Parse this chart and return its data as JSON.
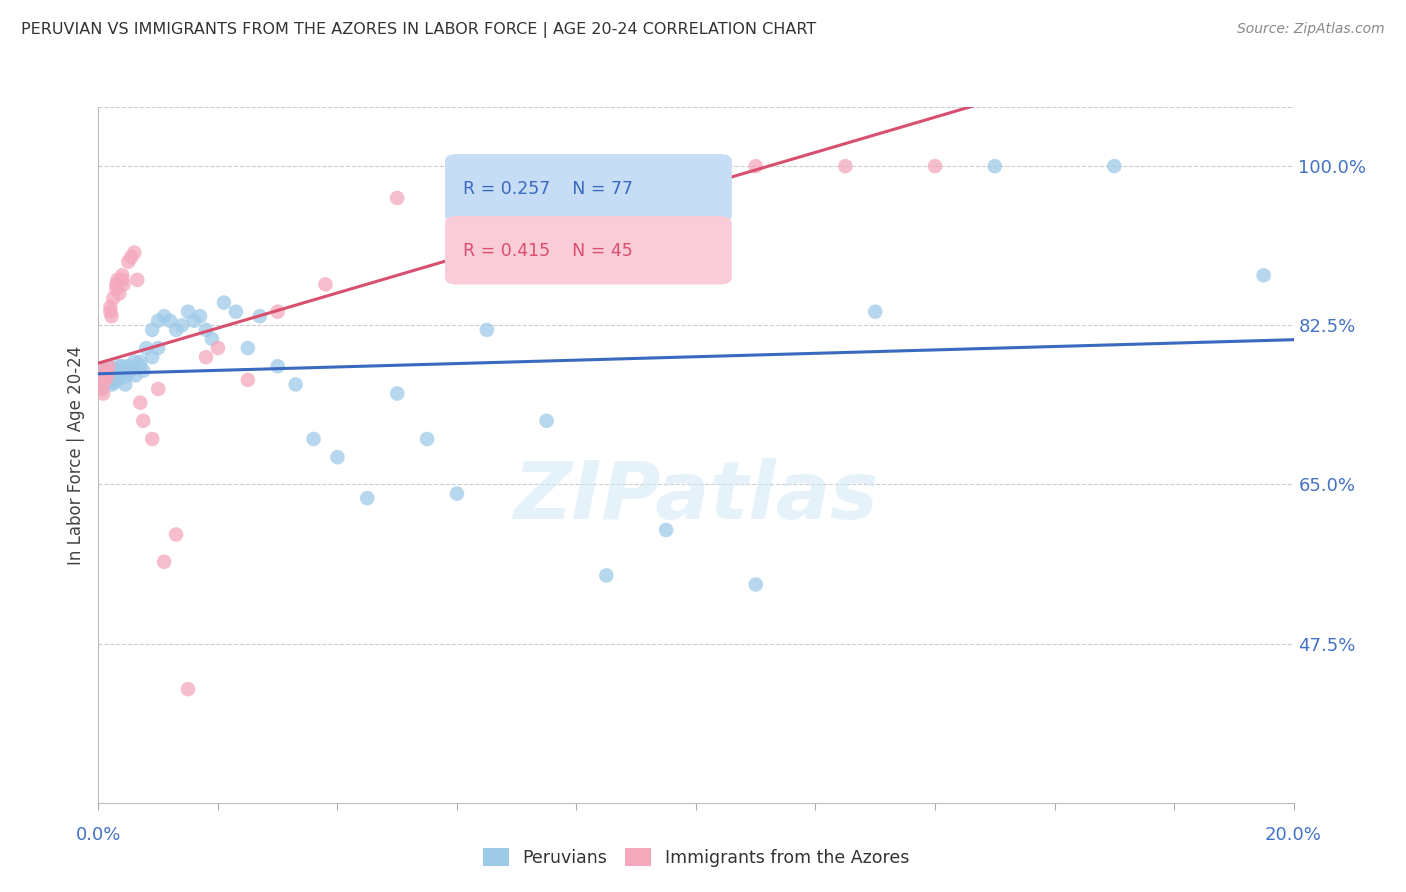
{
  "title": "PERUVIAN VS IMMIGRANTS FROM THE AZORES IN LABOR FORCE | AGE 20-24 CORRELATION CHART",
  "source": "Source: ZipAtlas.com",
  "ylabel": "In Labor Force | Age 20-24",
  "right_ytick_vals": [
    1.0,
    0.825,
    0.65,
    0.475
  ],
  "right_ytick_labels": [
    "100.0%",
    "82.5%",
    "65.0%",
    "47.5%"
  ],
  "legend_blue_label": "Peruvians",
  "legend_pink_label": "Immigrants from the Azores",
  "blue_r": "R = 0.257",
  "blue_n": "N = 77",
  "pink_r": "R = 0.415",
  "pink_n": "N = 45",
  "blue_scatter_color": "#9ecae8",
  "pink_scatter_color": "#f4a8bc",
  "blue_line_color": "#3a6abf",
  "pink_line_color": "#d94f6e",
  "legend_box_blue_face": "#c6ddf5",
  "legend_box_pink_face": "#f9ccd8",
  "background_color": "#ffffff",
  "grid_color": "#cccccc",
  "title_color": "#333333",
  "axis_label_color": "#4472c4",
  "watermark_color": "#d0e8f5",
  "xlim": [
    0.0,
    0.2
  ],
  "ylim": [
    0.3,
    1.065
  ],
  "blue_scatter_x": [
    0.0004,
    0.0005,
    0.0006,
    0.0007,
    0.0008,
    0.0009,
    0.001,
    0.001,
    0.001,
    0.0012,
    0.0013,
    0.0014,
    0.0015,
    0.0016,
    0.0017,
    0.0018,
    0.002,
    0.002,
    0.0021,
    0.0022,
    0.0023,
    0.0024,
    0.0025,
    0.0026,
    0.003,
    0.003,
    0.0032,
    0.0034,
    0.0035,
    0.004,
    0.004,
    0.0042,
    0.0045,
    0.005,
    0.005,
    0.0052,
    0.006,
    0.006,
    0.0062,
    0.007,
    0.007,
    0.0075,
    0.008,
    0.009,
    0.009,
    0.01,
    0.01,
    0.011,
    0.012,
    0.013,
    0.014,
    0.015,
    0.016,
    0.017,
    0.018,
    0.019,
    0.021,
    0.023,
    0.025,
    0.027,
    0.03,
    0.033,
    0.036,
    0.04,
    0.045,
    0.05,
    0.055,
    0.06,
    0.065,
    0.075,
    0.085,
    0.095,
    0.11,
    0.13,
    0.15,
    0.17,
    0.195
  ],
  "blue_scatter_y": [
    0.76,
    0.755,
    0.77,
    0.765,
    0.76,
    0.758,
    0.775,
    0.77,
    0.762,
    0.77,
    0.775,
    0.768,
    0.77,
    0.772,
    0.765,
    0.77,
    0.775,
    0.768,
    0.772,
    0.778,
    0.76,
    0.765,
    0.77,
    0.762,
    0.775,
    0.77,
    0.765,
    0.78,
    0.772,
    0.78,
    0.775,
    0.768,
    0.76,
    0.78,
    0.772,
    0.775,
    0.785,
    0.778,
    0.77,
    0.785,
    0.78,
    0.775,
    0.8,
    0.82,
    0.79,
    0.83,
    0.8,
    0.835,
    0.83,
    0.82,
    0.825,
    0.84,
    0.83,
    0.835,
    0.82,
    0.81,
    0.85,
    0.84,
    0.8,
    0.835,
    0.78,
    0.76,
    0.7,
    0.68,
    0.635,
    0.75,
    0.7,
    0.64,
    0.82,
    0.72,
    0.55,
    0.6,
    0.54,
    0.84,
    1.0,
    1.0,
    0.88
  ],
  "pink_scatter_x": [
    0.0004,
    0.0005,
    0.0006,
    0.0008,
    0.001,
    0.001,
    0.0012,
    0.0014,
    0.0015,
    0.0017,
    0.002,
    0.002,
    0.0022,
    0.0025,
    0.003,
    0.003,
    0.0032,
    0.0035,
    0.004,
    0.004,
    0.0042,
    0.005,
    0.0055,
    0.006,
    0.0065,
    0.007,
    0.0075,
    0.009,
    0.01,
    0.011,
    0.013,
    0.015,
    0.018,
    0.02,
    0.025,
    0.03,
    0.038,
    0.05,
    0.065,
    0.08,
    0.09,
    0.1,
    0.11,
    0.125,
    0.14
  ],
  "pink_scatter_y": [
    0.765,
    0.76,
    0.755,
    0.75,
    0.778,
    0.77,
    0.765,
    0.775,
    0.77,
    0.78,
    0.845,
    0.84,
    0.835,
    0.855,
    0.87,
    0.865,
    0.875,
    0.86,
    0.875,
    0.88,
    0.87,
    0.895,
    0.9,
    0.905,
    0.875,
    0.74,
    0.72,
    0.7,
    0.755,
    0.565,
    0.595,
    0.425,
    0.79,
    0.8,
    0.765,
    0.84,
    0.87,
    0.965,
    1.0,
    1.0,
    1.0,
    1.0,
    1.0,
    1.0,
    1.0
  ]
}
